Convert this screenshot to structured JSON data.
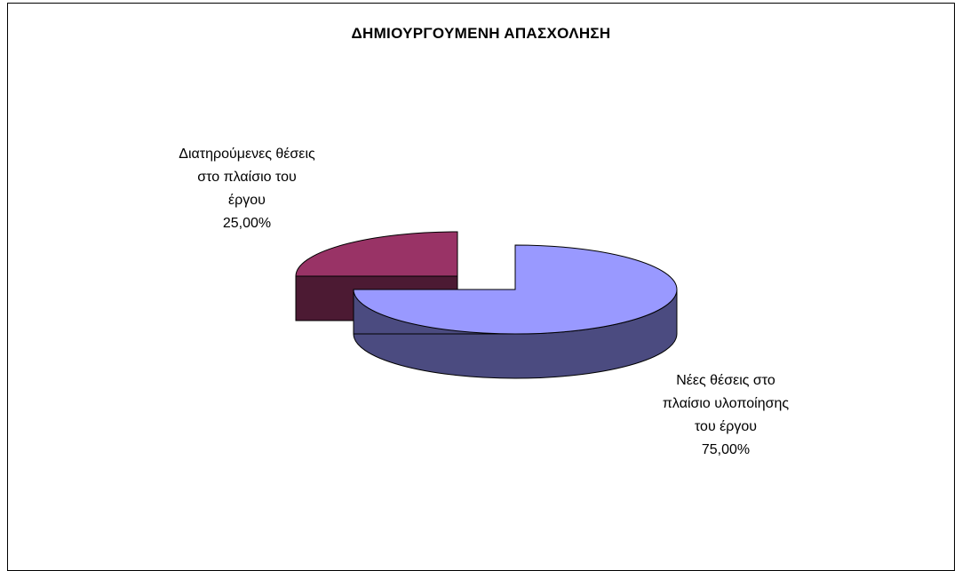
{
  "chart_data": {
    "type": "pie",
    "style": "3d-exploded",
    "title": "ΔΗΜΙΟΥΡΓΟΥΜΕΝΗ ΑΠΑΣΧΟΛΗΣΗ",
    "slices": [
      {
        "name": "Νέες θέσεις στο πλαίσιο υλοποίησης του έργου",
        "value": 75.0,
        "value_label": "75,00%",
        "label_lines": [
          "Νέες θέσεις στο",
          "πλαίσιο υλοποίησης",
          "του έργου",
          "75,00%"
        ],
        "color_top": "#9999ff",
        "color_side": "#4b4b80"
      },
      {
        "name": "Διατηρούμενες θέσεις στο πλαίσιο του έργου",
        "value": 25.0,
        "value_label": "25,00%",
        "label_lines": [
          "Διατηρούμενες θέσεις",
          "στο πλαίσιο του",
          "έργου",
          "25,00%"
        ],
        "color_top": "#993366",
        "color_side": "#4c1a33"
      }
    ]
  }
}
